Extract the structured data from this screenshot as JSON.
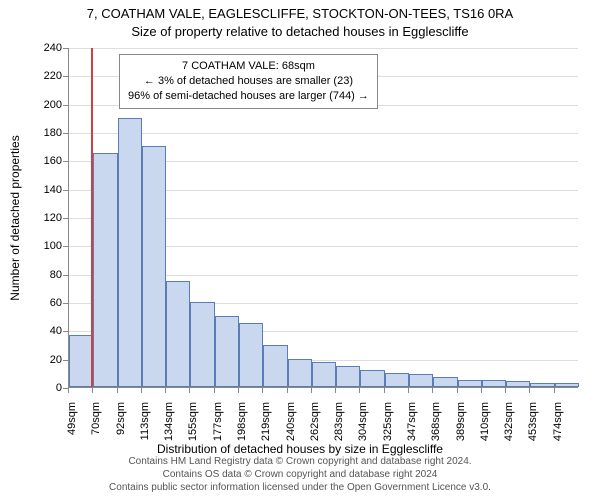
{
  "titles": {
    "line1": "7, COATHAM VALE, EAGLESCLIFFE, STOCKTON-ON-TEES, TS16 0RA",
    "line2": "Size of property relative to detached houses in Egglescliffe"
  },
  "axes": {
    "ylabel": "Number of detached properties",
    "xlabel": "Distribution of detached houses by size in Egglescliffe",
    "ylim": [
      0,
      240
    ],
    "ytick_step": 20,
    "yticks": [
      0,
      20,
      40,
      60,
      80,
      100,
      120,
      140,
      160,
      180,
      200,
      220,
      240
    ],
    "xtick_start": 49,
    "xtick_step": 21.3,
    "xtick_labels": [
      "49sqm",
      "70sqm",
      "92sqm",
      "113sqm",
      "134sqm",
      "155sqm",
      "177sqm",
      "198sqm",
      "219sqm",
      "240sqm",
      "262sqm",
      "283sqm",
      "304sqm",
      "325sqm",
      "347sqm",
      "368sqm",
      "389sqm",
      "410sqm",
      "432sqm",
      "453sqm",
      "474sqm"
    ]
  },
  "chart": {
    "type": "histogram",
    "bar_fill": "#c9d7ef",
    "bar_stroke": "#5b7db5",
    "grid_color": "#dddddd",
    "background_color": "#ffffff",
    "axis_color": "#888888",
    "values": [
      37,
      165,
      190,
      170,
      75,
      60,
      50,
      45,
      30,
      20,
      18,
      15,
      12,
      10,
      9,
      7,
      5,
      5,
      4,
      3,
      3
    ],
    "marker_line": {
      "value_sqm": 68,
      "color": "#d04040"
    }
  },
  "annotation": {
    "line1": "7 COATHAM VALE: 68sqm",
    "line2": "← 3% of detached houses are smaller (23)",
    "line3": "96% of semi-detached houses are larger (744) →",
    "border_color": "#888888",
    "bg": "#ffffff",
    "fontsize": 11
  },
  "typography": {
    "title_fontsize": 13,
    "axis_label_fontsize": 12,
    "tick_fontsize": 11,
    "annotation_fontsize": 11,
    "footer_fontsize": 10
  },
  "footer": {
    "line1": "Contains HM Land Registry data © Crown copyright and database right 2024.",
    "line2": "Contains OS data © Crown copyright and database right 2024",
    "line3": "Contains public sector information licensed under the Open Government Licence v3.0."
  }
}
